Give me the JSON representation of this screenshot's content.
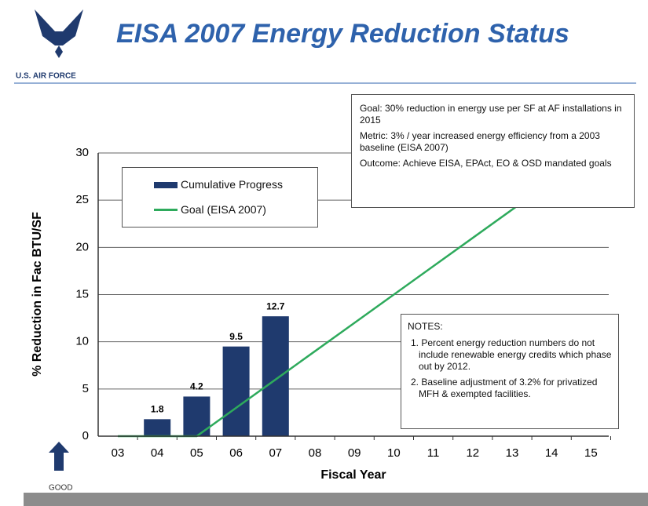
{
  "header": {
    "title": "EISA 2007 Energy Reduction Status",
    "organization": "U.S. AIR FORCE"
  },
  "chart_data": {
    "type": "bar_line",
    "xlabel": "Fiscal Year",
    "ylabel": "% Reduction in Fac BTU/SF",
    "categories": [
      "03",
      "04",
      "05",
      "06",
      "07",
      "08",
      "09",
      "10",
      "11",
      "12",
      "13",
      "14",
      "15"
    ],
    "series": [
      {
        "name": "Cumulative Progress",
        "kind": "bar",
        "color": "#1f3a6e",
        "values": [
          null,
          1.8,
          4.2,
          9.5,
          12.7,
          null,
          null,
          null,
          null,
          null,
          null,
          null,
          null
        ]
      },
      {
        "name": "Goal (EISA 2007)",
        "kind": "line",
        "color": "#2eaa5c",
        "values": [
          0,
          0,
          0,
          3,
          6,
          9,
          12,
          15,
          18,
          21,
          24,
          27,
          30
        ]
      }
    ],
    "ylim": [
      0,
      30
    ],
    "yticks": [
      0,
      5,
      10,
      15,
      20,
      25,
      30
    ],
    "grid": true,
    "legend": "upper left",
    "indicator": "GOOD"
  },
  "goal_box": [
    "Goal:  30% reduction in energy use per SF at AF installations in 2015",
    "Metric:  3% / year increased energy efficiency from a 2003 baseline  (EISA 2007)",
    "Outcome:  Achieve EISA, EPAct, EO & OSD mandated goals"
  ],
  "notes_box": {
    "title": "NOTES:",
    "items": [
      "1. Percent energy reduction numbers do not include renewable energy credits which phase out by 2012.",
      "2. Baseline adjustment of 3.2% for privatized MFH & exempted facilities."
    ]
  }
}
